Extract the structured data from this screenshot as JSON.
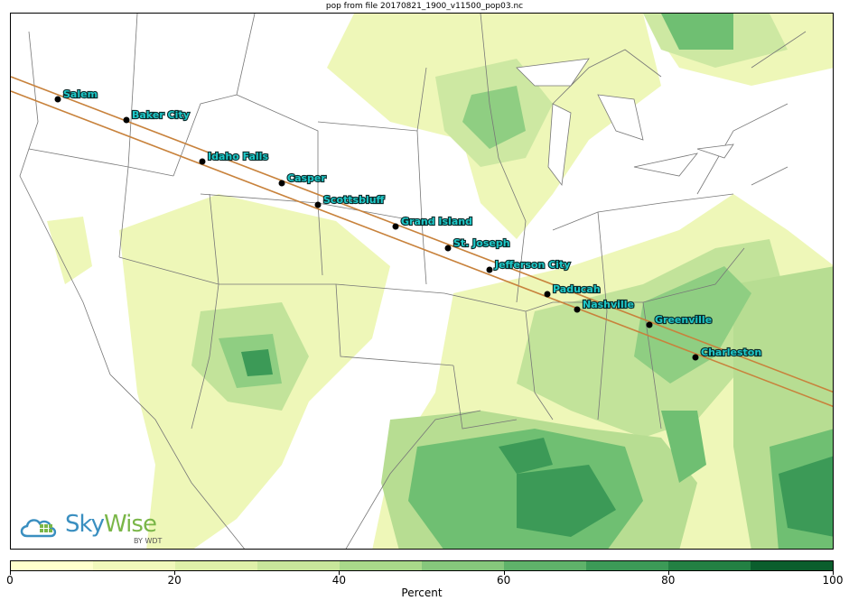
{
  "title": "pop from file 20170821_1900_v11500_pop03.nc",
  "colorbar": {
    "label": "Percent",
    "ticks": [
      "0",
      "20",
      "40",
      "60",
      "80",
      "100"
    ],
    "colors": [
      "#ffffcc",
      "#f1f8bb",
      "#dff0a9",
      "#c8e69b",
      "#a9d98a",
      "#86c77c",
      "#5fb26a",
      "#3c9a57",
      "#238043",
      "#0b5e2d"
    ]
  },
  "logo": {
    "brand_a": "Sky",
    "brand_b": "Wise",
    "byline": "BY WDT"
  },
  "cities": [
    {
      "name": "Salem"
    },
    {
      "name": "Baker City"
    },
    {
      "name": "Idaho Falls"
    },
    {
      "name": "Casper"
    },
    {
      "name": "Scottsbluff"
    },
    {
      "name": "Grand Island"
    },
    {
      "name": "St. Joseph"
    },
    {
      "name": "Jefferson City"
    },
    {
      "name": "Paducah"
    },
    {
      "name": "Nashville"
    },
    {
      "name": "Greenville"
    },
    {
      "name": "Charleston"
    }
  ],
  "path_color": "#c8823c"
}
